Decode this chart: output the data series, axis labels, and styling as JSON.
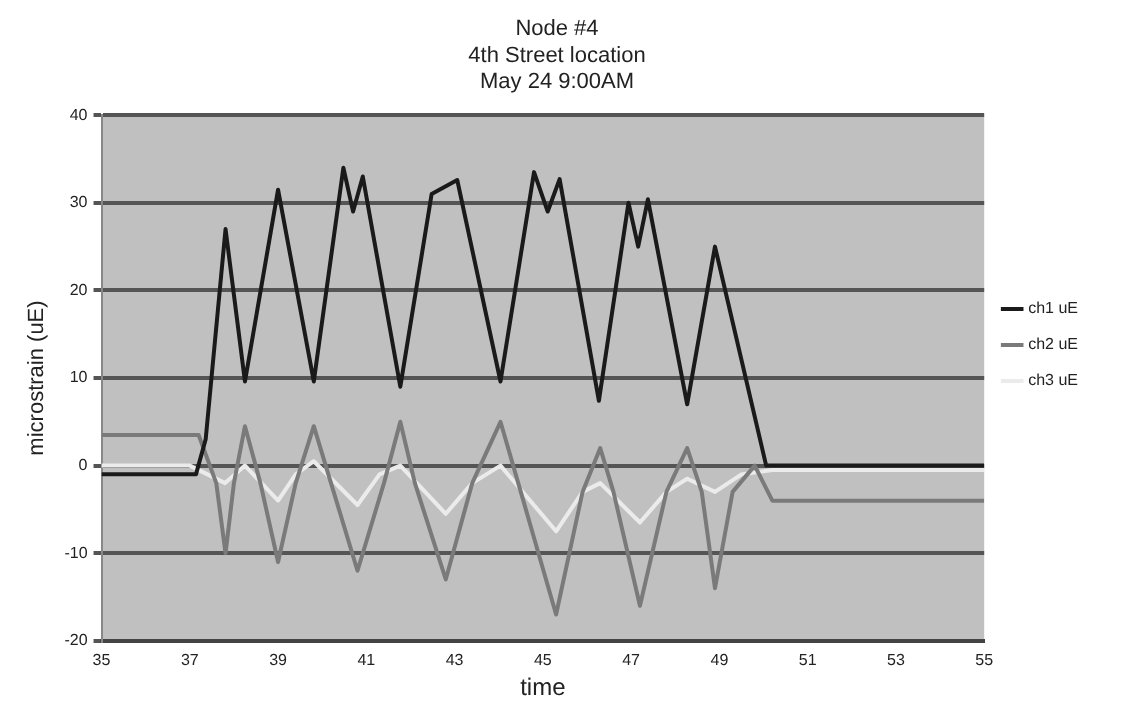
{
  "chart_data": {
    "type": "line",
    "title": [
      "Node #4",
      "4th Street location",
      "May 24 9:00AM"
    ],
    "xlabel": "time",
    "ylabel": "microstrain (uE)",
    "xlim": [
      35,
      55
    ],
    "xticks": [
      35,
      37,
      39,
      41,
      43,
      45,
      47,
      49,
      51,
      53,
      55
    ],
    "ylim": [
      -20,
      40
    ],
    "yticks": [
      -20,
      -10,
      0,
      10,
      20,
      30,
      40
    ],
    "grid": "y",
    "legend": "right",
    "marker": "none",
    "line_style": "solid",
    "series": [
      {
        "name": "ch1 uE",
        "color": "#1a1a1a",
        "x": [
          35,
          37.14,
          37.36,
          37.81,
          38.25,
          39.0,
          39.81,
          40.48,
          40.7,
          40.92,
          41.77,
          42.48,
          43.06,
          44.04,
          44.8,
          45.11,
          45.38,
          46.27,
          46.94,
          47.16,
          47.38,
          48.27,
          48.9,
          50.06,
          55
        ],
        "values": [
          -1,
          -1,
          3,
          27,
          9.6,
          31.5,
          9.6,
          34,
          29,
          33,
          9,
          31,
          32.6,
          9.6,
          33.5,
          29,
          32.7,
          7.4,
          30,
          25,
          30.4,
          7,
          25,
          0,
          0
        ]
      },
      {
        "name": "ch2 uE",
        "color": "#7a7a7a",
        "x": [
          35,
          37.2,
          37.6,
          37.81,
          38.0,
          38.25,
          38.6,
          39.0,
          39.4,
          39.81,
          40.2,
          40.8,
          41.4,
          41.77,
          42.1,
          42.8,
          43.4,
          44.04,
          44.5,
          45.3,
          45.9,
          46.3,
          46.6,
          47.2,
          47.8,
          48.27,
          48.6,
          48.9,
          49.3,
          49.8,
          50.2,
          55
        ],
        "values": [
          3.5,
          3.5,
          -2,
          -10,
          -2,
          4.5,
          -2,
          -11,
          -2,
          4.5,
          -2,
          -12,
          -2,
          5,
          -2,
          -13,
          -2,
          5,
          -3,
          -17,
          -3,
          2,
          -3,
          -16,
          -3,
          2,
          -3,
          -14,
          -3,
          0,
          -4,
          -4
        ]
      },
      {
        "name": "ch3 uE",
        "color": "#ebebeb",
        "x": [
          35,
          37,
          37.8,
          38.25,
          39.0,
          39.4,
          39.81,
          40.8,
          41.3,
          41.77,
          42.8,
          43.4,
          44.04,
          45.3,
          45.9,
          46.3,
          47.2,
          47.8,
          48.27,
          48.9,
          49.5,
          50.2,
          55
        ],
        "values": [
          0,
          0,
          -2,
          0,
          -4,
          -1,
          0.5,
          -4.5,
          -1,
          0,
          -5.5,
          -2,
          0,
          -7.5,
          -3,
          -2,
          -6.5,
          -3,
          -1.5,
          -3,
          -1,
          -0.5,
          -0.5
        ]
      }
    ]
  }
}
